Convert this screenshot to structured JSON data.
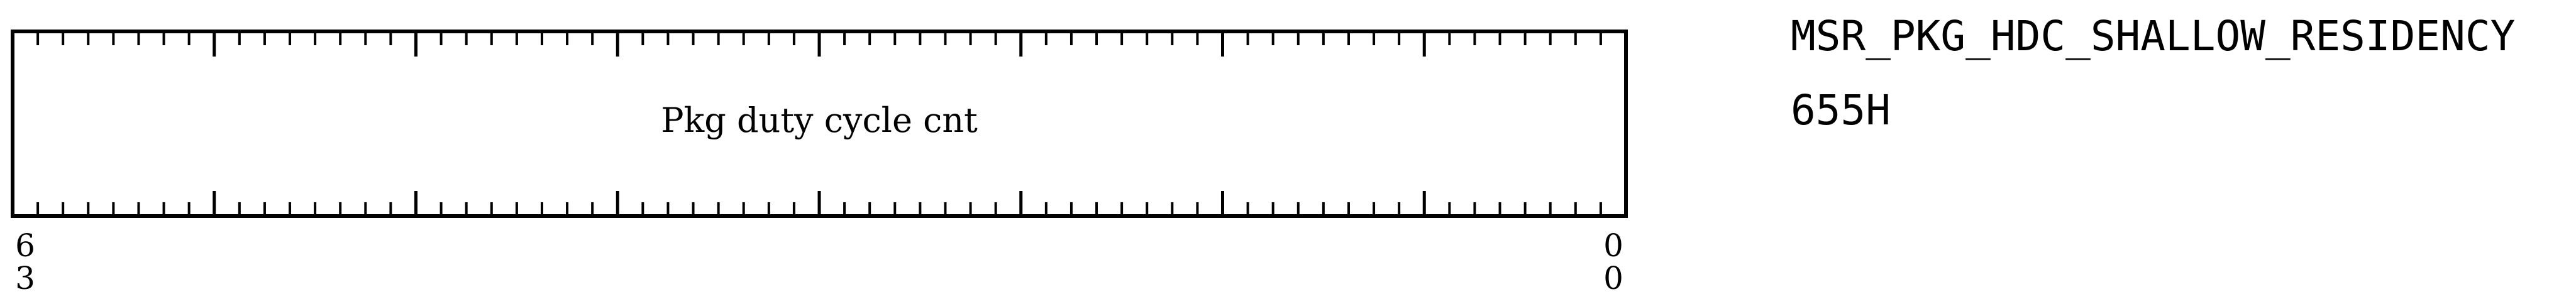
{
  "register": {
    "name": "MSR_PKG_HDC_SHALLOW_RESIDENCY",
    "address": "655H"
  },
  "field": {
    "label": "Pkg duty cycle cnt"
  },
  "bit_labels": {
    "left_top": "6",
    "left_bottom": "3",
    "right_top": "0",
    "right_bottom": "0"
  },
  "bit_range": {
    "msb": 63,
    "lsb": 0
  }
}
